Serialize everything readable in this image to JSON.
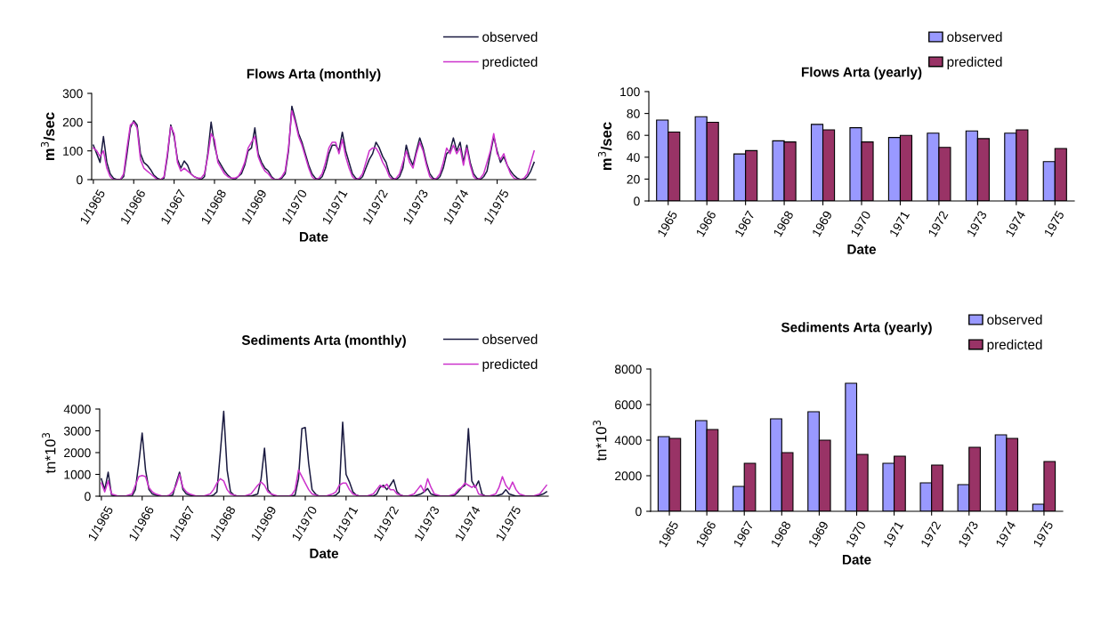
{
  "chart_data": [
    {
      "type": "line",
      "title": "Flows Arta (monthly)",
      "xlabel": "Date",
      "ylabel": "m$^{3}$/sec",
      "ylim": [
        0,
        300
      ],
      "yticks": [
        0,
        100,
        200,
        300
      ],
      "grid": false,
      "legend": "top right",
      "marker": "none",
      "line_style": "solid",
      "categories": [
        "1/1965",
        null,
        null,
        null,
        null,
        null,
        null,
        null,
        null,
        null,
        null,
        null,
        "1/1966",
        null,
        null,
        null,
        null,
        null,
        null,
        null,
        null,
        null,
        null,
        null,
        "1/1967",
        null,
        null,
        null,
        null,
        null,
        null,
        null,
        null,
        null,
        null,
        null,
        "1/1968",
        null,
        null,
        null,
        null,
        null,
        null,
        null,
        null,
        null,
        null,
        null,
        "1/1969",
        null,
        null,
        null,
        null,
        null,
        null,
        null,
        null,
        null,
        null,
        null,
        "1/1970",
        null,
        null,
        null,
        null,
        null,
        null,
        null,
        null,
        null,
        null,
        null,
        "1/1971",
        null,
        null,
        null,
        null,
        null,
        null,
        null,
        null,
        null,
        null,
        null,
        "1/1972",
        null,
        null,
        null,
        null,
        null,
        null,
        null,
        null,
        null,
        null,
        null,
        "1/1973",
        null,
        null,
        null,
        null,
        null,
        null,
        null,
        null,
        null,
        null,
        null,
        "1/1974",
        null,
        null,
        null,
        null,
        null,
        null,
        null,
        null,
        null,
        null,
        null,
        "1/1975",
        null,
        null,
        null,
        null,
        null,
        null,
        null,
        null,
        null,
        null,
        null
      ],
      "series": [
        {
          "name": "observed",
          "color": "#1a1a40",
          "values": [
            120,
            90,
            60,
            150,
            60,
            20,
            5,
            0,
            0,
            10,
            90,
            180,
            205,
            190,
            90,
            60,
            50,
            35,
            15,
            5,
            0,
            5,
            80,
            190,
            150,
            70,
            40,
            65,
            50,
            20,
            10,
            5,
            0,
            10,
            90,
            200,
            120,
            70,
            50,
            30,
            15,
            5,
            0,
            10,
            20,
            50,
            100,
            110,
            180,
            90,
            60,
            40,
            30,
            10,
            0,
            0,
            5,
            20,
            100,
            255,
            210,
            160,
            130,
            90,
            50,
            20,
            5,
            0,
            10,
            40,
            90,
            120,
            120,
            100,
            165,
            100,
            60,
            20,
            5,
            0,
            10,
            40,
            70,
            90,
            130,
            110,
            80,
            60,
            20,
            5,
            0,
            10,
            40,
            120,
            75,
            50,
            100,
            145,
            110,
            60,
            20,
            5,
            0,
            10,
            40,
            90,
            100,
            145,
            100,
            130,
            60,
            120,
            60,
            20,
            5,
            0,
            10,
            30,
            90,
            150,
            100,
            60,
            80,
            50,
            30,
            15,
            5,
            0,
            0,
            10,
            30,
            60
          ]
        },
        {
          "name": "predicted",
          "color": "#cc33cc",
          "values": [
            110,
            100,
            80,
            100,
            40,
            10,
            0,
            0,
            0,
            20,
            110,
            190,
            200,
            180,
            70,
            40,
            30,
            20,
            10,
            0,
            0,
            10,
            90,
            185,
            160,
            60,
            30,
            40,
            30,
            20,
            10,
            5,
            5,
            20,
            80,
            160,
            140,
            60,
            40,
            20,
            10,
            5,
            5,
            10,
            30,
            60,
            110,
            130,
            150,
            80,
            50,
            30,
            20,
            5,
            0,
            0,
            10,
            30,
            110,
            240,
            200,
            150,
            120,
            80,
            40,
            10,
            0,
            5,
            20,
            60,
            110,
            130,
            130,
            90,
            140,
            80,
            40,
            10,
            0,
            5,
            20,
            60,
            100,
            110,
            110,
            90,
            60,
            40,
            10,
            0,
            5,
            20,
            60,
            100,
            60,
            40,
            90,
            130,
            100,
            50,
            10,
            0,
            5,
            20,
            60,
            110,
            90,
            120,
            90,
            110,
            50,
            110,
            50,
            10,
            0,
            5,
            20,
            60,
            100,
            160,
            90,
            70,
            90,
            50,
            20,
            5,
            0,
            0,
            5,
            20,
            60,
            100
          ]
        }
      ]
    },
    {
      "type": "bar",
      "title": "Flows Arta (yearly)",
      "xlabel": "Date",
      "ylabel": "m$^{3}$/sec",
      "ylim": [
        0,
        100
      ],
      "yticks": [
        0,
        20,
        40,
        60,
        80,
        100
      ],
      "grid": false,
      "legend": "top right",
      "categories": [
        "1965",
        "1966",
        "1967",
        "1968",
        "1969",
        "1970",
        "1971",
        "1972",
        "1973",
        "1974",
        "1975"
      ],
      "series": [
        {
          "name": "observed",
          "color": "#9999ff",
          "values": [
            74,
            77,
            43,
            55,
            70,
            67,
            58,
            62,
            64,
            62,
            36
          ]
        },
        {
          "name": "predicted",
          "color": "#993366",
          "values": [
            63,
            72,
            46,
            54,
            65,
            54,
            60,
            49,
            57,
            65,
            48
          ]
        }
      ]
    },
    {
      "type": "line",
      "title": "Sediments Arta (monthly)",
      "xlabel": "Date",
      "ylabel": "tn*10$^{3}$",
      "ylim": [
        0,
        4000
      ],
      "yticks": [
        0,
        1000,
        2000,
        3000,
        4000
      ],
      "grid": false,
      "legend": "top right",
      "marker": "none",
      "line_style": "solid",
      "categories": [
        "1/1965",
        null,
        null,
        null,
        null,
        null,
        null,
        null,
        null,
        null,
        null,
        null,
        "1/1966",
        null,
        null,
        null,
        null,
        null,
        null,
        null,
        null,
        null,
        null,
        null,
        "1/1967",
        null,
        null,
        null,
        null,
        null,
        null,
        null,
        null,
        null,
        null,
        null,
        "1/1968",
        null,
        null,
        null,
        null,
        null,
        null,
        null,
        null,
        null,
        null,
        null,
        "1/1969",
        null,
        null,
        null,
        null,
        null,
        null,
        null,
        null,
        null,
        null,
        null,
        "1/1970",
        null,
        null,
        null,
        null,
        null,
        null,
        null,
        null,
        null,
        null,
        null,
        "1/1971",
        null,
        null,
        null,
        null,
        null,
        null,
        null,
        null,
        null,
        null,
        null,
        "1/1972",
        null,
        null,
        null,
        null,
        null,
        null,
        null,
        null,
        null,
        null,
        null,
        "1/1973",
        null,
        null,
        null,
        null,
        null,
        null,
        null,
        null,
        null,
        null,
        null,
        "1/1974",
        null,
        null,
        null,
        null,
        null,
        null,
        null,
        null,
        null,
        null,
        null,
        "1/1975",
        null,
        null,
        null,
        null,
        null,
        null,
        null,
        null,
        null,
        null,
        null
      ],
      "series": [
        {
          "name": "observed",
          "color": "#1a1a40",
          "values": [
            800,
            300,
            1100,
            50,
            0,
            0,
            0,
            0,
            0,
            0,
            300,
            1500,
            2900,
            1200,
            300,
            100,
            50,
            0,
            0,
            0,
            0,
            50,
            600,
            1100,
            300,
            100,
            50,
            0,
            0,
            0,
            0,
            0,
            0,
            50,
            200,
            2000,
            3900,
            1200,
            200,
            50,
            0,
            0,
            0,
            0,
            0,
            50,
            100,
            800,
            2200,
            300,
            100,
            0,
            0,
            0,
            0,
            0,
            0,
            50,
            800,
            3100,
            3150,
            1500,
            300,
            100,
            0,
            0,
            0,
            0,
            0,
            50,
            200,
            3400,
            1000,
            650,
            200,
            50,
            0,
            0,
            0,
            0,
            0,
            100,
            400,
            500,
            300,
            500,
            750,
            200,
            50,
            0,
            0,
            0,
            0,
            50,
            100,
            200,
            350,
            100,
            50,
            0,
            0,
            0,
            0,
            0,
            50,
            200,
            400,
            500,
            3100,
            700,
            400,
            700,
            100,
            0,
            0,
            0,
            0,
            50,
            100,
            300,
            100,
            50,
            0,
            0,
            0,
            0,
            0,
            0,
            0,
            50,
            100,
            200
          ]
        },
        {
          "name": "predicted",
          "color": "#cc33cc",
          "values": [
            600,
            200,
            700,
            100,
            50,
            0,
            0,
            0,
            50,
            100,
            500,
            900,
            950,
            900,
            400,
            200,
            100,
            50,
            0,
            0,
            50,
            200,
            500,
            1000,
            400,
            200,
            100,
            50,
            0,
            0,
            0,
            50,
            100,
            300,
            600,
            800,
            700,
            300,
            100,
            50,
            0,
            0,
            0,
            50,
            100,
            300,
            500,
            650,
            500,
            200,
            100,
            50,
            0,
            0,
            0,
            0,
            50,
            300,
            1200,
            900,
            600,
            300,
            100,
            50,
            0,
            0,
            0,
            50,
            100,
            200,
            500,
            600,
            600,
            300,
            100,
            50,
            0,
            0,
            0,
            50,
            100,
            300,
            500,
            400,
            550,
            300,
            300,
            100,
            50,
            0,
            0,
            50,
            100,
            300,
            500,
            200,
            800,
            400,
            100,
            50,
            0,
            0,
            0,
            50,
            100,
            300,
            400,
            600,
            500,
            400,
            500,
            100,
            50,
            0,
            0,
            50,
            100,
            400,
            900,
            500,
            300,
            650,
            300,
            100,
            50,
            0,
            0,
            0,
            50,
            100,
            300,
            500
          ]
        }
      ]
    },
    {
      "type": "bar",
      "title": "Sediments Arta (yearly)",
      "xlabel": "Date",
      "ylabel": "tn*10$^{3}$",
      "ylim": [
        0,
        8000
      ],
      "yticks": [
        0,
        2000,
        4000,
        6000,
        8000
      ],
      "grid": false,
      "legend": "top right",
      "categories": [
        "1965",
        "1966",
        "1967",
        "1968",
        "1969",
        "1970",
        "1971",
        "1972",
        "1973",
        "1974",
        "1975"
      ],
      "series": [
        {
          "name": "observed",
          "color": "#9999ff",
          "values": [
            4200,
            5100,
            1400,
            5200,
            5600,
            7200,
            2700,
            1600,
            1500,
            4300,
            400
          ]
        },
        {
          "name": "predicted",
          "color": "#993366",
          "values": [
            4100,
            4600,
            2700,
            3300,
            4000,
            3200,
            3100,
            2600,
            3600,
            4100,
            2800
          ]
        }
      ]
    }
  ]
}
